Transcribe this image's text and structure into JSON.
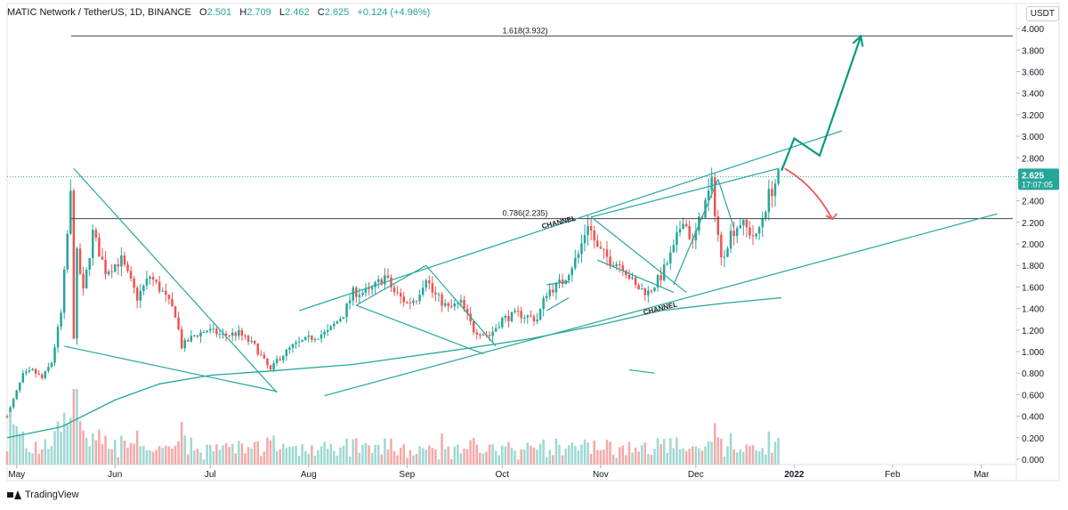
{
  "header": {
    "symbol": "MATIC Network / TetherUS, 1D, BINANCE",
    "o_label": "O",
    "o_value": "2.501",
    "h_label": "H",
    "h_value": "2.709",
    "l_label": "L",
    "l_value": "2.462",
    "c_label": "C",
    "c_value": "2.625",
    "change": "+0.124 (+4.96%)"
  },
  "currency": "USDT",
  "branding": "TradingView",
  "price_tag": {
    "price": "2.625",
    "countdown": "17:07:05"
  },
  "colors": {
    "up": "#26a69a",
    "down": "#ef5350",
    "vol_up": "#9fd8d2",
    "vol_down": "#f5a9a8",
    "drawing": "#26a69a",
    "red_arrow": "#ef5350"
  },
  "chart_data": {
    "type": "candlestick",
    "ylim": [
      -0.05,
      4.1
    ],
    "yticks": [
      "4.000",
      "3.800",
      "3.600",
      "3.400",
      "3.200",
      "3.000",
      "2.800",
      "2.600",
      "2.400",
      "2.200",
      "2.000",
      "1.800",
      "1.600",
      "1.400",
      "1.200",
      "1.000",
      "0.800",
      "0.600",
      "0.400",
      "0.200",
      "0.000"
    ],
    "ytick_values": [
      4.0,
      3.8,
      3.6,
      3.4,
      3.2,
      3.0,
      2.8,
      2.6,
      2.4,
      2.2,
      2.0,
      1.8,
      1.6,
      1.4,
      1.2,
      1.0,
      0.8,
      0.6,
      0.4,
      0.2,
      0.0
    ],
    "x_start": "2021-04-28",
    "x_end": "2022-03-12",
    "xticks": [
      {
        "label": "May",
        "date": "2021-05-01"
      },
      {
        "label": "Jun",
        "date": "2021-06-01"
      },
      {
        "label": "Jul",
        "date": "2021-07-01"
      },
      {
        "label": "Aug",
        "date": "2021-08-01"
      },
      {
        "label": "Sep",
        "date": "2021-09-01"
      },
      {
        "label": "Oct",
        "date": "2021-10-01"
      },
      {
        "label": "Nov",
        "date": "2021-11-01"
      },
      {
        "label": "Dec",
        "date": "2021-12-01"
      },
      {
        "label": "2022",
        "date": "2022-01-01"
      },
      {
        "label": "Feb",
        "date": "2022-02-01"
      },
      {
        "label": "Mar",
        "date": "2022-03-01"
      }
    ],
    "price_path": [
      [
        "2021-04-28",
        0.4
      ],
      [
        "2021-05-03",
        0.78
      ],
      [
        "2021-05-06",
        0.82
      ],
      [
        "2021-05-09",
        0.75
      ],
      [
        "2021-05-12",
        0.9
      ],
      [
        "2021-05-15",
        1.35
      ],
      [
        "2021-05-18",
        2.45
      ],
      [
        "2021-05-19",
        1.15
      ],
      [
        "2021-05-20",
        1.9
      ],
      [
        "2021-05-22",
        1.55
      ],
      [
        "2021-05-25",
        2.1
      ],
      [
        "2021-05-29",
        1.75
      ],
      [
        "2021-06-03",
        1.85
      ],
      [
        "2021-06-08",
        1.5
      ],
      [
        "2021-06-12",
        1.7
      ],
      [
        "2021-06-16",
        1.55
      ],
      [
        "2021-06-20",
        1.35
      ],
      [
        "2021-06-22",
        1.05
      ],
      [
        "2021-06-26",
        1.15
      ],
      [
        "2021-06-30",
        1.2
      ],
      [
        "2021-07-05",
        1.15
      ],
      [
        "2021-07-10",
        1.17
      ],
      [
        "2021-07-15",
        1.05
      ],
      [
        "2021-07-20",
        0.82
      ],
      [
        "2021-07-22",
        0.92
      ],
      [
        "2021-07-27",
        1.05
      ],
      [
        "2021-08-01",
        1.12
      ],
      [
        "2021-08-07",
        1.18
      ],
      [
        "2021-08-12",
        1.35
      ],
      [
        "2021-08-15",
        1.55
      ],
      [
        "2021-08-20",
        1.55
      ],
      [
        "2021-08-25",
        1.7
      ],
      [
        "2021-08-28",
        1.55
      ],
      [
        "2021-09-01",
        1.45
      ],
      [
        "2021-09-04",
        1.5
      ],
      [
        "2021-09-07",
        1.7
      ],
      [
        "2021-09-09",
        1.55
      ],
      [
        "2021-09-14",
        1.4
      ],
      [
        "2021-09-18",
        1.45
      ],
      [
        "2021-09-22",
        1.2
      ],
      [
        "2021-09-27",
        1.15
      ],
      [
        "2021-10-01",
        1.3
      ],
      [
        "2021-10-06",
        1.35
      ],
      [
        "2021-10-12",
        1.3
      ],
      [
        "2021-10-15",
        1.55
      ],
      [
        "2021-10-20",
        1.65
      ],
      [
        "2021-10-25",
        1.9
      ],
      [
        "2021-10-28",
        2.2
      ],
      [
        "2021-10-31",
        1.95
      ],
      [
        "2021-11-04",
        1.85
      ],
      [
        "2021-11-08",
        1.8
      ],
      [
        "2021-11-12",
        1.6
      ],
      [
        "2021-11-16",
        1.55
      ],
      [
        "2021-11-20",
        1.7
      ],
      [
        "2021-11-24",
        1.95
      ],
      [
        "2021-11-27",
        2.25
      ],
      [
        "2021-11-30",
        2.0
      ],
      [
        "2021-12-03",
        2.3
      ],
      [
        "2021-12-06",
        2.55
      ],
      [
        "2021-12-09",
        1.85
      ],
      [
        "2021-12-12",
        2.1
      ],
      [
        "2021-12-15",
        2.2
      ],
      [
        "2021-12-20",
        2.05
      ],
      [
        "2021-12-24",
        2.45
      ],
      [
        "2021-12-27",
        2.625
      ]
    ],
    "ma_line": [
      [
        "2021-04-28",
        0.2
      ],
      [
        "2021-05-15",
        0.3
      ],
      [
        "2021-06-01",
        0.55
      ],
      [
        "2021-06-15",
        0.7
      ],
      [
        "2021-07-01",
        0.78
      ],
      [
        "2021-07-20",
        0.82
      ],
      [
        "2021-08-15",
        0.88
      ],
      [
        "2021-09-01",
        0.95
      ],
      [
        "2021-09-20",
        1.03
      ],
      [
        "2021-10-10",
        1.12
      ],
      [
        "2021-11-01",
        1.25
      ],
      [
        "2021-11-20",
        1.38
      ],
      [
        "2021-12-10",
        1.45
      ],
      [
        "2021-12-28",
        1.5
      ]
    ],
    "volume_scale": 1.3,
    "levels": [
      {
        "label": "1.618(3.932)",
        "value": 3.932
      },
      {
        "label": "0.786(2.235)",
        "value": 2.235
      }
    ],
    "annotations": [
      {
        "text": "CHANNEL",
        "date": "2021-10-19",
        "value": 2.18
      },
      {
        "text": "CHANNEL",
        "date": "2021-11-20",
        "value": 1.38
      }
    ],
    "trendlines": [
      [
        [
          "2021-05-19",
          2.7
        ],
        [
          "2021-07-22",
          0.62
        ]
      ],
      [
        [
          "2021-05-16",
          1.05
        ],
        [
          "2021-07-22",
          0.63
        ]
      ],
      [
        [
          "2021-07-29",
          1.38
        ],
        [
          "2022-01-16",
          3.05
        ]
      ],
      [
        [
          "2021-08-06",
          0.59
        ],
        [
          "2022-03-06",
          2.28
        ]
      ],
      [
        [
          "2021-08-16",
          1.43
        ],
        [
          "2021-09-07",
          1.8
        ]
      ],
      [
        [
          "2021-09-07",
          1.8
        ],
        [
          "2021-09-29",
          1.05
        ]
      ],
      [
        [
          "2021-08-16",
          1.43
        ],
        [
          "2021-09-25",
          0.98
        ]
      ],
      [
        [
          "2021-10-29",
          2.25
        ],
        [
          "2021-11-28",
          1.55
        ]
      ],
      [
        [
          "2021-10-29",
          2.25
        ],
        [
          "2021-12-27",
          2.7
        ]
      ],
      [
        [
          "2021-10-31",
          1.85
        ],
        [
          "2021-11-24",
          1.55
        ]
      ],
      [
        [
          "2021-10-15",
          1.62
        ],
        [
          "2021-10-22",
          1.65
        ]
      ],
      [
        [
          "2021-10-15",
          1.38
        ],
        [
          "2021-10-22",
          1.5
        ]
      ],
      [
        [
          "2021-11-24",
          1.62
        ],
        [
          "2021-12-08",
          2.6
        ]
      ],
      [
        [
          "2021-12-08",
          2.6
        ],
        [
          "2021-12-13",
          2.15
        ]
      ],
      [
        [
          "2021-11-10",
          0.83
        ],
        [
          "2021-11-18",
          0.8
        ]
      ]
    ],
    "green_arrow": [
      [
        "2021-12-28",
        2.68
      ],
      [
        "2022-01-01",
        2.98
      ],
      [
        "2022-01-09",
        2.82
      ],
      [
        "2022-01-22",
        3.93
      ]
    ],
    "red_arrow": [
      [
        "2021-12-29",
        2.7
      ],
      [
        "2022-01-04",
        2.6
      ],
      [
        "2022-01-09",
        2.45
      ],
      [
        "2022-01-13",
        2.23
      ]
    ]
  }
}
